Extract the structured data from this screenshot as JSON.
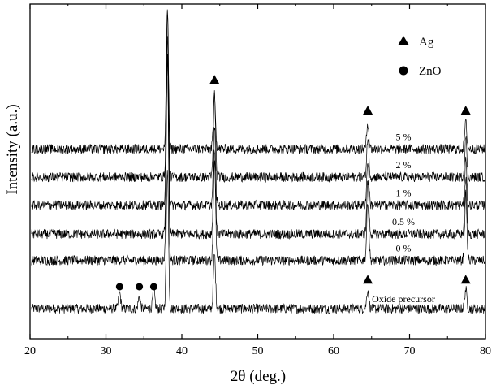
{
  "chart_data": {
    "type": "line",
    "xlabel": "2θ (deg.)",
    "ylabel": "Intensity (a.u.)",
    "xlim": [
      20,
      80
    ],
    "x_ticks": [
      20,
      30,
      40,
      50,
      60,
      70,
      80
    ],
    "y_ticks_shown": false,
    "grid": false,
    "legend": {
      "placement": "top-right",
      "items": [
        {
          "marker": "triangle",
          "label": "Ag"
        },
        {
          "marker": "circle",
          "label": "ZnO"
        }
      ]
    },
    "ag_peaks_2theta": [
      38.1,
      44.3,
      64.5,
      77.4
    ],
    "zno_peaks_2theta": [
      31.8,
      34.4,
      36.3
    ],
    "series": [
      {
        "name": "Oxide precursor",
        "baseline": 0.0,
        "peaks": [
          [
            31.8,
            0.18
          ],
          [
            34.4,
            0.14
          ],
          [
            36.3,
            0.22
          ],
          [
            38.1,
            1.62
          ],
          [
            44.3,
            0.62
          ],
          [
            64.5,
            0.22
          ],
          [
            77.4,
            0.22
          ]
        ]
      },
      {
        "name": "0 %",
        "baseline": 0.55,
        "peaks": [
          [
            38.1,
            2.35
          ],
          [
            44.3,
            1.15
          ],
          [
            64.5,
            0.68
          ],
          [
            77.4,
            0.75
          ]
        ]
      },
      {
        "name": "0.5 %",
        "baseline": 0.85,
        "peaks": [
          [
            38.1,
            2.05
          ],
          [
            44.3,
            0.98
          ],
          [
            64.5,
            0.6
          ],
          [
            77.4,
            0.65
          ]
        ]
      },
      {
        "name": "1 %",
        "baseline": 1.18,
        "peaks": [
          [
            38.1,
            1.95
          ],
          [
            44.3,
            0.9
          ],
          [
            64.5,
            0.5
          ],
          [
            77.4,
            0.52
          ]
        ]
      },
      {
        "name": "2 %",
        "baseline": 1.5,
        "peaks": [
          [
            38.1,
            1.9
          ],
          [
            44.3,
            0.95
          ],
          [
            64.5,
            0.45
          ],
          [
            77.4,
            0.45
          ]
        ]
      },
      {
        "name": "5 %",
        "baseline": 1.82,
        "peaks": [
          [
            38.1,
            1.62
          ],
          [
            44.3,
            0.65
          ],
          [
            64.5,
            0.3
          ],
          [
            77.4,
            0.3
          ]
        ]
      }
    ]
  }
}
